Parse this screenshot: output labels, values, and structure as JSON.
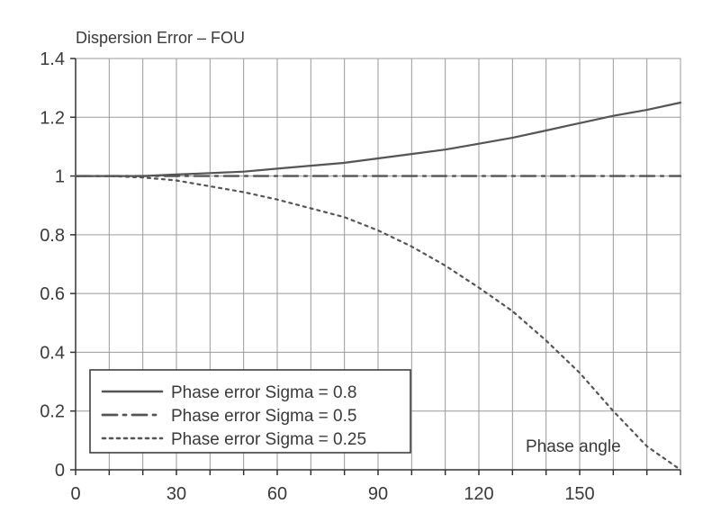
{
  "chart_data": {
    "type": "line",
    "title": "Dispersion Error – FOU",
    "xlabel": "",
    "ylabel": "",
    "annotation": "Phase angle",
    "xlim": [
      0,
      180
    ],
    "ylim": [
      0,
      1.4
    ],
    "x_ticks": [
      0,
      30,
      60,
      90,
      120,
      150
    ],
    "x_tick_labels": [
      "0",
      "30",
      "60",
      "90",
      "120",
      "150"
    ],
    "y_ticks": [
      0,
      0.2,
      0.4,
      0.6,
      0.8,
      1,
      1.2,
      1.4
    ],
    "y_tick_labels": [
      "0",
      "0.2",
      "0.4",
      "0.6",
      "0.8",
      "1",
      "1.2",
      "1.4"
    ],
    "grid": true,
    "vertical_gridlines_every": 10,
    "legend_position": "bottom-left",
    "colors": {
      "line": "#555555",
      "grid": "#9a9a9a",
      "axis": "#333333"
    },
    "series": [
      {
        "name": "Phase error Sigma = 0.8",
        "style": "solid",
        "x": [
          0,
          10,
          20,
          30,
          40,
          50,
          60,
          70,
          80,
          90,
          100,
          110,
          120,
          130,
          140,
          150,
          160,
          170,
          180
        ],
        "y": [
          1.0,
          1.0,
          1.0,
          1.005,
          1.01,
          1.015,
          1.025,
          1.035,
          1.045,
          1.06,
          1.075,
          1.09,
          1.11,
          1.13,
          1.155,
          1.18,
          1.205,
          1.225,
          1.25
        ]
      },
      {
        "name": "Phase error Sigma = 0.5",
        "style": "dash-dot",
        "x": [
          0,
          10,
          20,
          30,
          40,
          50,
          60,
          70,
          80,
          90,
          100,
          110,
          120,
          130,
          140,
          150,
          160,
          170,
          180
        ],
        "y": [
          1.0,
          1.0,
          1.0,
          1.0,
          1.0,
          1.0,
          1.0,
          1.0,
          1.0,
          1.0,
          1.0,
          1.0,
          1.0,
          1.0,
          1.0,
          1.0,
          1.0,
          1.0,
          1.0
        ]
      },
      {
        "name": "Phase error Sigma = 0.25",
        "style": "dotted",
        "x": [
          0,
          10,
          20,
          30,
          40,
          50,
          60,
          70,
          80,
          90,
          100,
          110,
          120,
          130,
          140,
          150,
          160,
          170,
          180
        ],
        "y": [
          1.0,
          1.0,
          0.995,
          0.985,
          0.965,
          0.945,
          0.92,
          0.89,
          0.86,
          0.815,
          0.76,
          0.695,
          0.62,
          0.54,
          0.44,
          0.33,
          0.2,
          0.08,
          0.0
        ]
      }
    ]
  }
}
